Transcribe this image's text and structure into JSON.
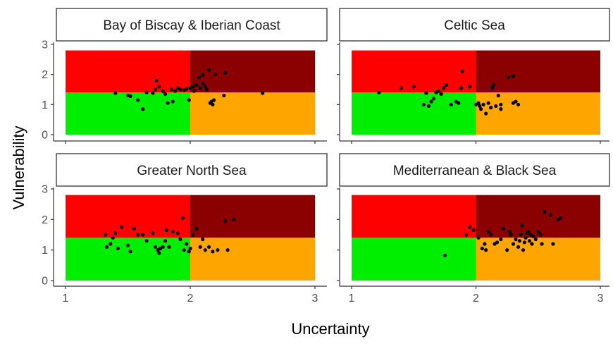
{
  "chart_data": {
    "type": "scatter",
    "xlabel": "Uncertainty",
    "ylabel": "Vulnerability",
    "xlim": [
      1,
      3
    ],
    "ylim": [
      0,
      3
    ],
    "xticks": [
      "1",
      "2",
      "3"
    ],
    "yticks": [
      "0",
      "1",
      "2",
      "3"
    ],
    "background_zones": [
      {
        "name": "low-uncertainty-high-vulnerability",
        "color": "#FF0000",
        "x": [
          1,
          2
        ],
        "y": [
          1.4,
          2.8
        ]
      },
      {
        "name": "high-uncertainty-high-vulnerability",
        "color": "#8B0000",
        "x": [
          2,
          3
        ],
        "y": [
          1.4,
          2.8
        ]
      },
      {
        "name": "low-uncertainty-low-vulnerability",
        "color": "#00EE00",
        "x": [
          1,
          2
        ],
        "y": [
          0,
          1.4
        ]
      },
      {
        "name": "high-uncertainty-low-vulnerability",
        "color": "#FFA500",
        "x": [
          2,
          3
        ],
        "y": [
          0,
          1.4
        ]
      }
    ],
    "point_color": "#000000",
    "panels": [
      {
        "title": "Bay of Biscay & Iberian Coast",
        "points": [
          [
            1.4,
            1.38
          ],
          [
            1.5,
            1.3
          ],
          [
            1.52,
            1.28
          ],
          [
            1.58,
            1.15
          ],
          [
            1.62,
            0.85
          ],
          [
            1.65,
            1.4
          ],
          [
            1.7,
            1.38
          ],
          [
            1.72,
            1.5
          ],
          [
            1.73,
            1.8
          ],
          [
            1.75,
            1.6
          ],
          [
            1.78,
            1.45
          ],
          [
            1.8,
            1.35
          ],
          [
            1.82,
            1.05
          ],
          [
            1.85,
            1.5
          ],
          [
            1.86,
            1.1
          ],
          [
            1.88,
            1.45
          ],
          [
            1.9,
            1.55
          ],
          [
            1.92,
            1.5
          ],
          [
            1.95,
            1.48
          ],
          [
            1.97,
            1.52
          ],
          [
            2.0,
            1.55
          ],
          [
            1.99,
            1.15
          ],
          [
            2.02,
            1.6
          ],
          [
            2.03,
            1.45
          ],
          [
            2.05,
            1.65
          ],
          [
            2.07,
            1.9
          ],
          [
            2.08,
            1.55
          ],
          [
            2.1,
            1.7
          ],
          [
            2.12,
            1.6
          ],
          [
            2.1,
            1.98
          ],
          [
            2.13,
            1.5
          ],
          [
            2.15,
            2.15
          ],
          [
            2.16,
            1.05
          ],
          [
            2.17,
            1.1
          ],
          [
            2.18,
            1.0
          ],
          [
            2.19,
            1.15
          ],
          [
            2.2,
            2.0
          ],
          [
            2.27,
            1.3
          ],
          [
            2.28,
            2.05
          ],
          [
            2.58,
            1.38
          ]
        ]
      },
      {
        "title": "Celtic Sea",
        "points": [
          [
            1.22,
            1.4
          ],
          [
            1.4,
            1.55
          ],
          [
            1.5,
            1.6
          ],
          [
            1.58,
            1.0
          ],
          [
            1.6,
            1.38
          ],
          [
            1.62,
            0.95
          ],
          [
            1.64,
            1.1
          ],
          [
            1.66,
            1.2
          ],
          [
            1.68,
            1.4
          ],
          [
            1.7,
            1.45
          ],
          [
            1.72,
            1.35
          ],
          [
            1.74,
            1.55
          ],
          [
            1.76,
            1.65
          ],
          [
            1.8,
            1.0
          ],
          [
            1.84,
            1.1
          ],
          [
            1.86,
            1.05
          ],
          [
            1.88,
            1.55
          ],
          [
            1.89,
            2.1
          ],
          [
            1.95,
            1.6
          ],
          [
            2.0,
            1.0
          ],
          [
            2.02,
            1.05
          ],
          [
            2.03,
            0.95
          ],
          [
            2.04,
            0.85
          ],
          [
            2.06,
            1.0
          ],
          [
            2.08,
            0.7
          ],
          [
            2.1,
            1.05
          ],
          [
            2.12,
            0.9
          ],
          [
            2.13,
            1.55
          ],
          [
            2.14,
            1.65
          ],
          [
            2.16,
            0.95
          ],
          [
            2.18,
            1.3
          ],
          [
            2.2,
            0.85
          ],
          [
            2.2,
            1.0
          ],
          [
            2.26,
            1.9
          ],
          [
            2.3,
            1.95
          ],
          [
            2.3,
            1.05
          ],
          [
            2.32,
            1.1
          ],
          [
            2.34,
            1.0
          ]
        ]
      },
      {
        "title": "Greater North Sea",
        "points": [
          [
            1.32,
            1.5
          ],
          [
            1.33,
            1.1
          ],
          [
            1.36,
            1.2
          ],
          [
            1.38,
            1.4
          ],
          [
            1.4,
            1.55
          ],
          [
            1.42,
            1.05
          ],
          [
            1.45,
            1.75
          ],
          [
            1.5,
            1.15
          ],
          [
            1.52,
            0.95
          ],
          [
            1.55,
            1.7
          ],
          [
            1.58,
            1.5
          ],
          [
            1.62,
            1.5
          ],
          [
            1.65,
            1.3
          ],
          [
            1.7,
            1.55
          ],
          [
            1.72,
            1.1
          ],
          [
            1.74,
            1.0
          ],
          [
            1.75,
            0.9
          ],
          [
            1.76,
            1.05
          ],
          [
            1.78,
            1.1
          ],
          [
            1.8,
            1.3
          ],
          [
            1.81,
            1.65
          ],
          [
            1.83,
            1.1
          ],
          [
            1.86,
            1.6
          ],
          [
            1.9,
            1.55
          ],
          [
            1.92,
            1.35
          ],
          [
            1.94,
            2.05
          ],
          [
            1.95,
            1.0
          ],
          [
            1.97,
            1.2
          ],
          [
            1.99,
            0.95
          ],
          [
            2.0,
            1.05
          ],
          [
            2.02,
            1.5
          ],
          [
            2.05,
            1.7
          ],
          [
            2.08,
            1.1
          ],
          [
            2.1,
            1.35
          ],
          [
            2.12,
            1.0
          ],
          [
            2.15,
            1.1
          ],
          [
            2.18,
            0.95
          ],
          [
            2.22,
            1.0
          ],
          [
            2.28,
            1.95
          ],
          [
            2.3,
            1.0
          ],
          [
            2.35,
            2.0
          ]
        ]
      },
      {
        "title": "Mediterranean & Black Sea",
        "points": [
          [
            1.75,
            0.82
          ],
          [
            1.92,
            1.5
          ],
          [
            1.95,
            1.75
          ],
          [
            1.98,
            1.65
          ],
          [
            2.02,
            1.4
          ],
          [
            2.05,
            1.05
          ],
          [
            2.07,
            1.2
          ],
          [
            2.08,
            1.0
          ],
          [
            2.1,
            1.6
          ],
          [
            2.12,
            1.5
          ],
          [
            2.15,
            1.2
          ],
          [
            2.17,
            1.25
          ],
          [
            2.2,
            1.35
          ],
          [
            2.22,
            1.7
          ],
          [
            2.25,
            1.0
          ],
          [
            2.27,
            1.6
          ],
          [
            2.28,
            1.5
          ],
          [
            2.3,
            1.2
          ],
          [
            2.32,
            1.35
          ],
          [
            2.34,
            1.1
          ],
          [
            2.35,
            1.3
          ],
          [
            2.36,
            1.5
          ],
          [
            2.37,
            1.8
          ],
          [
            2.38,
            1.0
          ],
          [
            2.39,
            1.25
          ],
          [
            2.4,
            1.4
          ],
          [
            2.41,
            1.55
          ],
          [
            2.42,
            1.6
          ],
          [
            2.43,
            1.3
          ],
          [
            2.44,
            1.5
          ],
          [
            2.45,
            1.2
          ],
          [
            2.46,
            1.45
          ],
          [
            2.48,
            1.35
          ],
          [
            2.5,
            1.6
          ],
          [
            2.52,
            1.5
          ],
          [
            2.53,
            1.2
          ],
          [
            2.55,
            2.25
          ],
          [
            2.6,
            2.15
          ],
          [
            2.62,
            1.2
          ],
          [
            2.66,
            2.0
          ],
          [
            2.68,
            2.05
          ]
        ]
      }
    ]
  }
}
